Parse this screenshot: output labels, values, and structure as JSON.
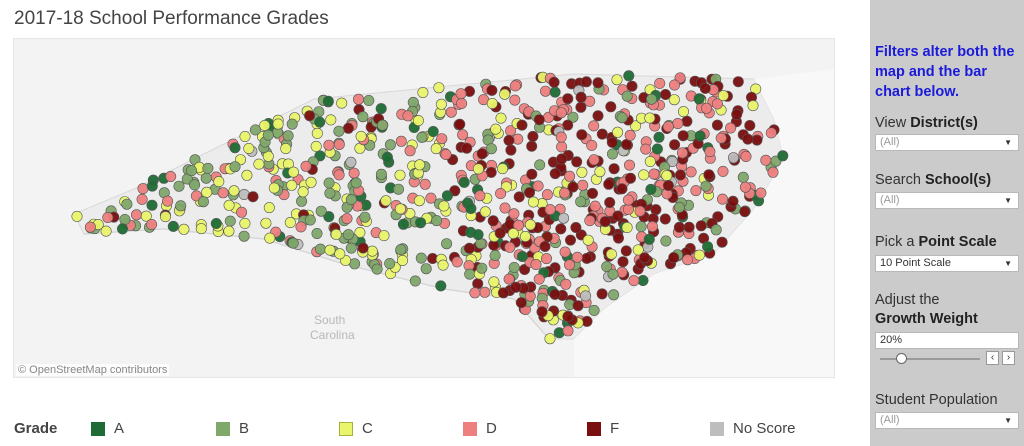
{
  "title": "2017-18 School Performance Grades",
  "map": {
    "attribution": "© OpenStreetMap contributors",
    "label_state_line1": "South",
    "label_state_line2": "Carolina"
  },
  "legend": {
    "title": "Grade",
    "items": [
      {
        "label": "A",
        "color": "#1e6b35"
      },
      {
        "label": "B",
        "color": "#80a86b"
      },
      {
        "label": "C",
        "color": "#e9f56a"
      },
      {
        "label": "D",
        "color": "#ee7f7f"
      },
      {
        "label": "F",
        "color": "#7a0f0f"
      },
      {
        "label": "No Score",
        "color": "#bdbdbd"
      }
    ]
  },
  "sidebar": {
    "note": "Filters alter both the map and the bar chart below.",
    "district": {
      "label_prefix": "View ",
      "label_bold": "District(s)",
      "value": "(All)"
    },
    "school": {
      "label_prefix": "Search ",
      "label_bold": "School(s)",
      "value": "(All)"
    },
    "scale": {
      "label_prefix": "Pick a ",
      "label_bold": "Point Scale",
      "value": "10 Point Scale"
    },
    "growth": {
      "label_line1": "Adjust the",
      "label_bold": "Growth Weight",
      "value": "20%",
      "level_percent": 20
    },
    "population": {
      "label": "Student Population",
      "value": "(All)"
    }
  }
}
